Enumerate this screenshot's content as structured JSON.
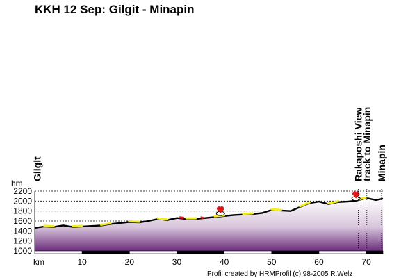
{
  "chart_data": {
    "type": "area",
    "title": "KKH 12 Sep: Gilgit - Minapin",
    "ylabel": "hm",
    "xlabel": "km",
    "ylim": [
      1000,
      2200
    ],
    "xlim": [
      0,
      73.5
    ],
    "yticks": [
      1000,
      1200,
      1400,
      1600,
      1800,
      2000,
      2200
    ],
    "xticks": [
      10,
      20,
      30,
      40,
      50,
      60,
      70
    ],
    "grid": true,
    "profile": {
      "x": [
        0,
        2,
        4,
        6,
        8,
        10,
        12,
        14,
        16,
        18,
        20,
        22,
        24,
        26,
        28,
        30,
        32,
        34,
        36,
        38,
        40,
        42,
        44,
        46,
        48,
        50,
        52,
        54,
        56,
        58,
        60,
        62,
        64,
        66,
        68,
        70,
        72,
        73.5
      ],
      "y": [
        1460,
        1490,
        1480,
        1510,
        1480,
        1490,
        1500,
        1510,
        1540,
        1560,
        1580,
        1570,
        1600,
        1640,
        1620,
        1660,
        1640,
        1640,
        1660,
        1680,
        1700,
        1720,
        1730,
        1740,
        1760,
        1820,
        1810,
        1800,
        1880,
        1960,
        1990,
        1940,
        1980,
        1990,
        2010,
        2060,
        2020,
        2050
      ]
    },
    "waypoints": [
      {
        "label": "Gilgit",
        "km": 0.5
      },
      {
        "label": "Rakaposhi View",
        "km": 68.3
      },
      {
        "label": "track to Minapin",
        "km": 70.1
      },
      {
        "label": "Minapin",
        "km": 73.2
      }
    ],
    "markers": [
      {
        "km": 39.2,
        "alt": 1835
      },
      {
        "km": 67.8,
        "alt": 2135
      }
    ],
    "credit": "Profil created by HRMProfil (c) 98-2005 R.Welz"
  }
}
